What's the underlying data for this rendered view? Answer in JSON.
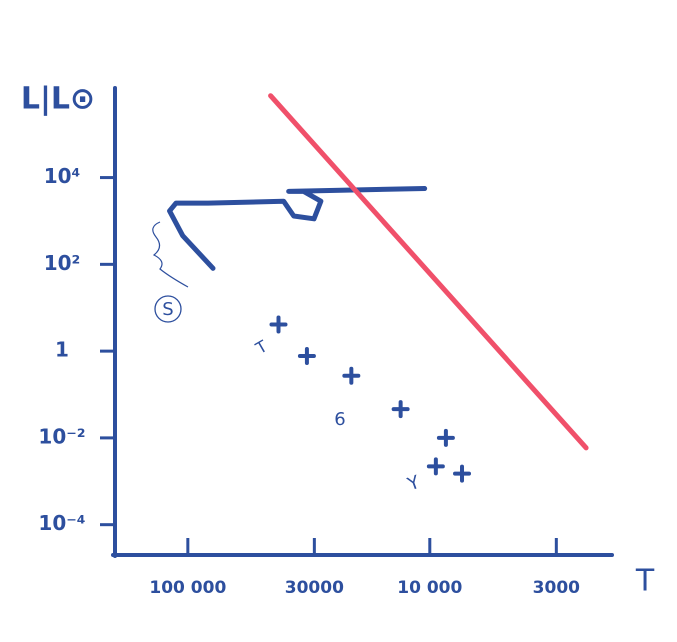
{
  "chart_data": {
    "type": "scatter",
    "y_label": "L|L⊙",
    "x_label": "T",
    "xscale": "log",
    "yscale": "log",
    "xlim": [
      200000,
      1800
    ],
    "ylim": [
      2e-05,
      800000
    ],
    "xticks": [
      {
        "value": 100000,
        "label": "100 000"
      },
      30000,
      {
        "value": 10000,
        "label": "10 000"
      },
      3000
    ],
    "yticks": [
      {
        "value": 0.0001,
        "label": "10⁻⁴"
      },
      {
        "value": 0.01,
        "label": "10⁻²"
      },
      1,
      {
        "value": 100,
        "label": "10²"
      },
      {
        "value": 10000,
        "label": "10⁴"
      }
    ],
    "series": [
      {
        "type": "line",
        "color": "#2d4f9e",
        "x": [
          78700,
          105000,
          119000,
          112000,
          82500,
          40200,
          36500,
          30100,
          28200,
          33200,
          38300,
          10500
        ],
        "values": [
          81,
          457,
          1700,
          2570,
          2570,
          2850,
          1300,
          1120,
          2850,
          4800,
          4800,
          5600
        ]
      },
      {
        "type": "line",
        "color": "#f0506a",
        "x": [
          45500,
          2260
        ],
        "values": [
          770000,
          0.0059
        ]
      },
      {
        "type": "scatter",
        "color": "#2d4f9e",
        "x": [
          42200,
          32200,
          21100,
          13200,
          8580,
          9440,
          7360
        ],
        "values": [
          4.1,
          0.77,
          0.27,
          0.046,
          0.01,
          0.0022,
          0.0015
        ]
      }
    ],
    "annotations": [
      "S",
      "T",
      "6",
      "Y"
    ]
  }
}
